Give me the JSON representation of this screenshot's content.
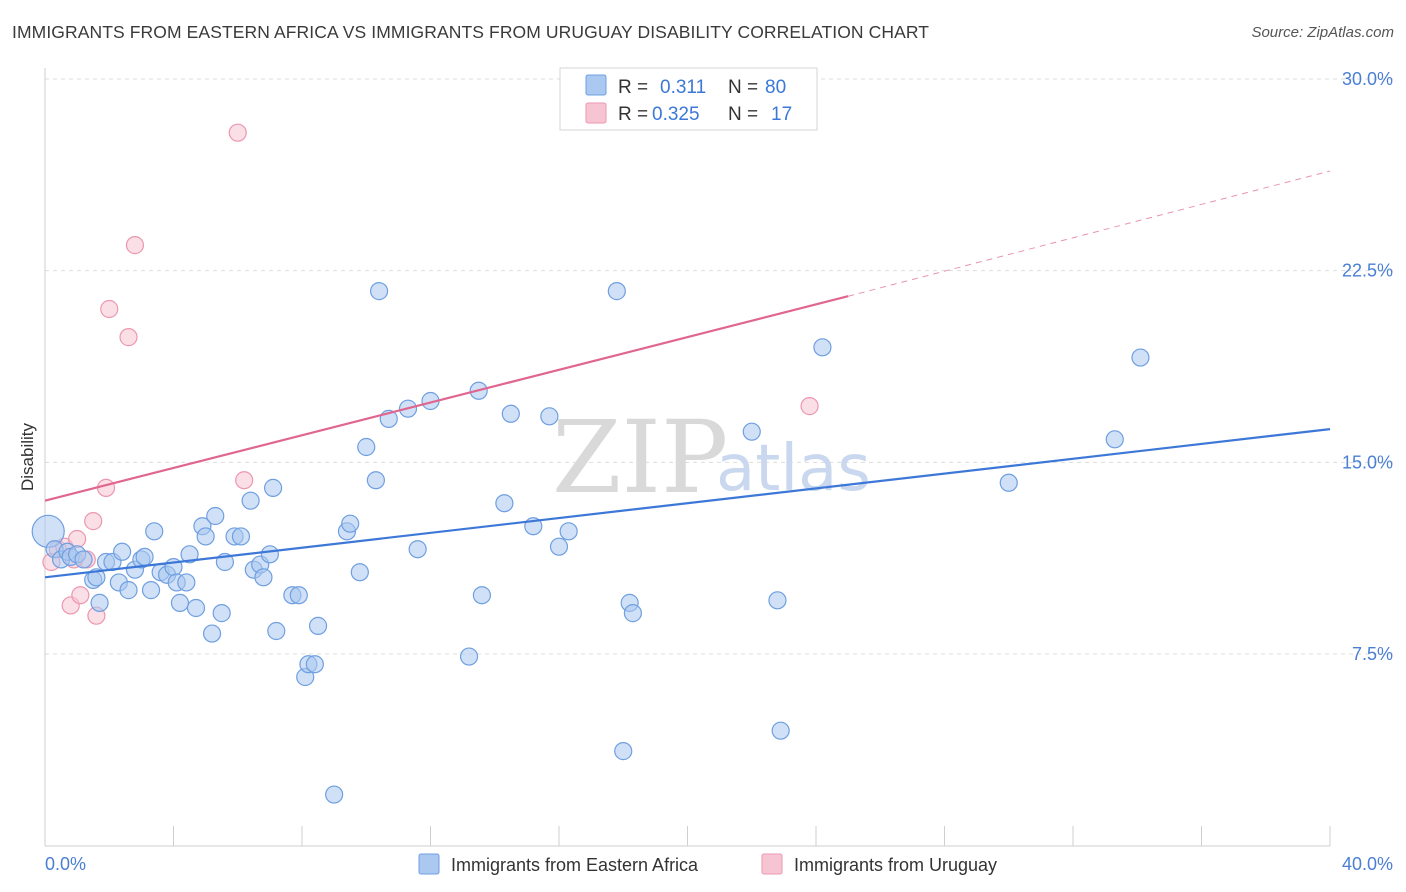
{
  "header": {
    "title": "IMMIGRANTS FROM EASTERN AFRICA VS IMMIGRANTS FROM URUGUAY DISABILITY CORRELATION CHART",
    "source": "Source: ZipAtlas.com"
  },
  "legend": {
    "r_label": "R =",
    "n_label": "N =",
    "series1": {
      "r": "0.311",
      "n": "80"
    },
    "series2": {
      "r": "0.325",
      "n": "17"
    }
  },
  "bottom_legend": {
    "series1": "Immigrants from Eastern Africa",
    "series2": "Immigrants from Uruguay"
  },
  "watermark": {
    "zip": "ZIP",
    "atlas": "atlas"
  },
  "colors": {
    "blue_fill": "#aac8f0",
    "blue_stroke": "#6f9fe0",
    "blue_line": "#3d78d8",
    "pink_fill": "#f7c4d3",
    "pink_stroke": "#ec97b0",
    "pink_line": "#e06690",
    "grid": "#dddddd"
  },
  "chart_data": {
    "type": "scatter",
    "title": "IMMIGRANTS FROM EASTERN AFRICA VS IMMIGRANTS FROM URUGUAY DISABILITY CORRELATION CHART",
    "xlabel": "",
    "ylabel": "Disability",
    "xlim": [
      0,
      40
    ],
    "ylim": [
      0,
      31
    ],
    "x_tick_labels": [
      "0.0%",
      "40.0%"
    ],
    "y_ticks": [
      7.5,
      15.0,
      22.5,
      30.0
    ],
    "y_tick_labels": [
      "7.5%",
      "15.0%",
      "22.5%",
      "30.0%"
    ],
    "grid": "horizontal dashed",
    "legend_position": "top-center",
    "series": [
      {
        "name": "Immigrants from Eastern Africa",
        "r": 0.311,
        "n": 80,
        "trend": {
          "x": [
            0,
            40
          ],
          "y": [
            10.5,
            16.3
          ]
        },
        "points": [
          {
            "x": 0.1,
            "y": 12.3,
            "big": true
          },
          {
            "x": 0.3,
            "y": 11.6
          },
          {
            "x": 0.5,
            "y": 11.2
          },
          {
            "x": 0.7,
            "y": 11.5
          },
          {
            "x": 0.8,
            "y": 11.3
          },
          {
            "x": 1.0,
            "y": 11.4
          },
          {
            "x": 1.2,
            "y": 11.2
          },
          {
            "x": 1.5,
            "y": 10.4
          },
          {
            "x": 1.6,
            "y": 10.5
          },
          {
            "x": 1.7,
            "y": 9.5
          },
          {
            "x": 1.9,
            "y": 11.1
          },
          {
            "x": 2.1,
            "y": 11.1
          },
          {
            "x": 2.3,
            "y": 10.3
          },
          {
            "x": 2.4,
            "y": 11.5
          },
          {
            "x": 2.6,
            "y": 10.0
          },
          {
            "x": 2.8,
            "y": 10.8
          },
          {
            "x": 3.0,
            "y": 11.2
          },
          {
            "x": 3.1,
            "y": 11.3
          },
          {
            "x": 3.3,
            "y": 10.0
          },
          {
            "x": 3.4,
            "y": 12.3
          },
          {
            "x": 3.6,
            "y": 10.7
          },
          {
            "x": 3.8,
            "y": 10.6
          },
          {
            "x": 4.0,
            "y": 10.9
          },
          {
            "x": 4.1,
            "y": 10.3
          },
          {
            "x": 4.2,
            "y": 9.5
          },
          {
            "x": 4.4,
            "y": 10.3
          },
          {
            "x": 4.5,
            "y": 11.4
          },
          {
            "x": 4.7,
            "y": 9.3
          },
          {
            "x": 4.9,
            "y": 12.5
          },
          {
            "x": 5.0,
            "y": 12.1
          },
          {
            "x": 5.2,
            "y": 8.3
          },
          {
            "x": 5.3,
            "y": 12.9
          },
          {
            "x": 5.5,
            "y": 9.1
          },
          {
            "x": 5.6,
            "y": 11.1
          },
          {
            "x": 5.9,
            "y": 12.1
          },
          {
            "x": 6.1,
            "y": 12.1
          },
          {
            "x": 6.4,
            "y": 13.5
          },
          {
            "x": 6.5,
            "y": 10.8
          },
          {
            "x": 6.7,
            "y": 11.0
          },
          {
            "x": 6.8,
            "y": 10.5
          },
          {
            "x": 7.0,
            "y": 11.4
          },
          {
            "x": 7.1,
            "y": 14.0
          },
          {
            "x": 7.2,
            "y": 8.4
          },
          {
            "x": 7.7,
            "y": 9.8
          },
          {
            "x": 7.9,
            "y": 9.8
          },
          {
            "x": 8.1,
            "y": 6.6
          },
          {
            "x": 8.2,
            "y": 7.1
          },
          {
            "x": 8.4,
            "y": 7.1
          },
          {
            "x": 8.5,
            "y": 8.6
          },
          {
            "x": 9.0,
            "y": 2.0
          },
          {
            "x": 9.4,
            "y": 12.3
          },
          {
            "x": 9.5,
            "y": 12.6
          },
          {
            "x": 9.8,
            "y": 10.7
          },
          {
            "x": 10.0,
            "y": 15.6
          },
          {
            "x": 10.4,
            "y": 21.7
          },
          {
            "x": 10.7,
            "y": 16.7
          },
          {
            "x": 11.3,
            "y": 17.1
          },
          {
            "x": 11.6,
            "y": 11.6
          },
          {
            "x": 12.0,
            "y": 17.4
          },
          {
            "x": 13.2,
            "y": 7.4
          },
          {
            "x": 13.5,
            "y": 17.8
          },
          {
            "x": 13.6,
            "y": 9.8
          },
          {
            "x": 14.3,
            "y": 13.4
          },
          {
            "x": 14.5,
            "y": 16.9
          },
          {
            "x": 15.2,
            "y": 12.5
          },
          {
            "x": 15.7,
            "y": 16.8
          },
          {
            "x": 16.0,
            "y": 11.7
          },
          {
            "x": 16.3,
            "y": 12.3
          },
          {
            "x": 17.8,
            "y": 21.7
          },
          {
            "x": 18.0,
            "y": 3.7
          },
          {
            "x": 18.2,
            "y": 9.5
          },
          {
            "x": 18.3,
            "y": 9.1
          },
          {
            "x": 22.0,
            "y": 16.2
          },
          {
            "x": 22.8,
            "y": 9.6
          },
          {
            "x": 22.9,
            "y": 4.5
          },
          {
            "x": 24.2,
            "y": 19.5
          },
          {
            "x": 30.0,
            "y": 14.2
          },
          {
            "x": 33.3,
            "y": 15.9
          },
          {
            "x": 34.1,
            "y": 19.1
          },
          {
            "x": 10.3,
            "y": 14.3
          }
        ]
      },
      {
        "name": "Immigrants from Uruguay",
        "r": 0.325,
        "n": 17,
        "trend": {
          "x": [
            0,
            25
          ],
          "y": [
            13.5,
            21.5
          ],
          "dashed_to": {
            "x": 40,
            "y": 26.4
          }
        },
        "points": [
          {
            "x": 0.2,
            "y": 11.1
          },
          {
            "x": 0.4,
            "y": 11.6
          },
          {
            "x": 0.6,
            "y": 11.7
          },
          {
            "x": 0.8,
            "y": 9.4
          },
          {
            "x": 1.0,
            "y": 12.0
          },
          {
            "x": 1.1,
            "y": 9.8
          },
          {
            "x": 1.3,
            "y": 11.2
          },
          {
            "x": 1.5,
            "y": 12.7
          },
          {
            "x": 1.6,
            "y": 9.0
          },
          {
            "x": 1.9,
            "y": 14.0
          },
          {
            "x": 2.0,
            "y": 21.0
          },
          {
            "x": 2.6,
            "y": 19.9
          },
          {
            "x": 2.8,
            "y": 23.5
          },
          {
            "x": 6.0,
            "y": 27.9
          },
          {
            "x": 6.2,
            "y": 14.3
          },
          {
            "x": 23.8,
            "y": 17.2
          },
          {
            "x": 0.9,
            "y": 11.2
          }
        ]
      }
    ]
  }
}
